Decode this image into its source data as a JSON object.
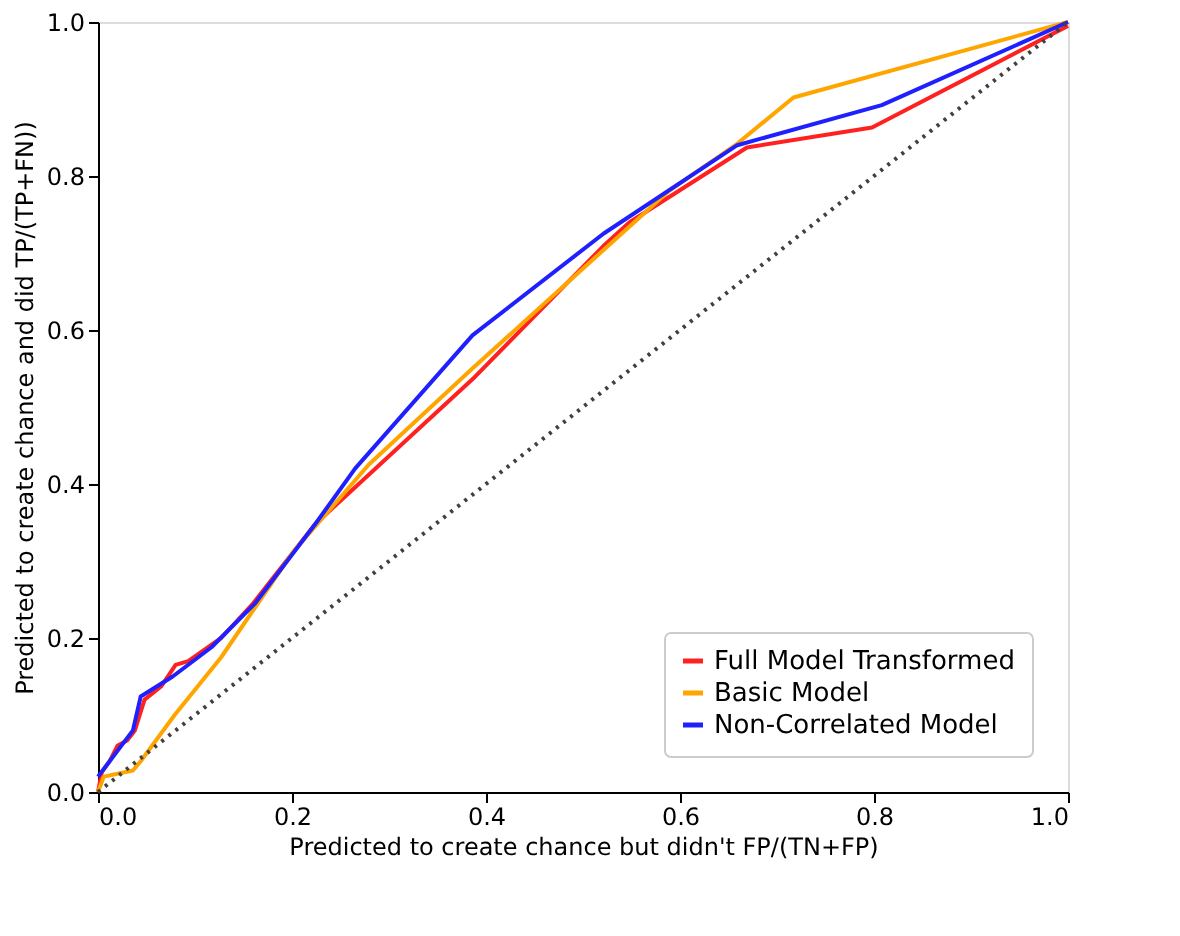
{
  "chart_data": {
    "type": "line",
    "xlabel": "Predicted to create chance but didn't FP/(TN+FP)",
    "ylabel": "Predicted to create chance and did TP/(TP+FN))",
    "xlim": [
      0,
      1
    ],
    "ylim": [
      0,
      1
    ],
    "xticks": [
      {
        "value": 0,
        "label": "0.0"
      },
      {
        "value": 0.2,
        "label": "0.2"
      },
      {
        "value": 0.4,
        "label": "0.4"
      },
      {
        "value": 0.6,
        "label": "0.6"
      },
      {
        "value": 0.8,
        "label": "0.8"
      },
      {
        "value": 1,
        "label": "1.0"
      }
    ],
    "yticks": [
      {
        "value": 0,
        "label": "0.0"
      },
      {
        "value": 0.2,
        "label": "0.2"
      },
      {
        "value": 0.4,
        "label": "0.4"
      },
      {
        "value": 0.6,
        "label": "0.6"
      },
      {
        "value": 0.8,
        "label": "0.8"
      },
      {
        "value": 1,
        "label": "1.0"
      }
    ],
    "grid": false,
    "legend": "bottom right",
    "line_style": "solid",
    "series": [
      {
        "name": "Full Model Transformed",
        "color": "#ff2020",
        "x": [
          0,
          0.004,
          0.012,
          0.02,
          0.03,
          0.038,
          0.048,
          0.065,
          0.08,
          0.093,
          0.127,
          0.16,
          0.224,
          0.386,
          0.521,
          0.548,
          0.669,
          0.798,
          1
        ],
        "values": [
          0,
          0.026,
          0.04,
          0.06,
          0.067,
          0.08,
          0.12,
          0.137,
          0.165,
          0.17,
          0.2,
          0.245,
          0.348,
          0.536,
          0.709,
          0.74,
          0.837,
          0.863,
          0.995
        ]
      },
      {
        "name": "Basic Model",
        "color": "#ffa500",
        "x": [
          0,
          0.006,
          0.036,
          0.044,
          0.079,
          0.127,
          0.2,
          0.279,
          0.386,
          0.588,
          0.657,
          0.717,
          1
        ],
        "values": [
          0,
          0.02,
          0.028,
          0.04,
          0.1,
          0.175,
          0.31,
          0.425,
          0.55,
          0.78,
          0.84,
          0.902,
          1
        ]
      },
      {
        "name": "Non-Correlated Model",
        "color": "#2020ff",
        "x": [
          0,
          0.012,
          0.036,
          0.044,
          0.077,
          0.117,
          0.162,
          0.224,
          0.265,
          0.386,
          0.521,
          0.659,
          0.808,
          1
        ],
        "values": [
          0.02,
          0.04,
          0.08,
          0.124,
          0.15,
          0.188,
          0.245,
          0.348,
          0.42,
          0.593,
          0.725,
          0.84,
          0.892,
          1
        ]
      },
      {
        "color": "#404040",
        "line_style": "dotted",
        "x": [
          0,
          1
        ],
        "values": [
          0,
          1
        ]
      }
    ]
  }
}
